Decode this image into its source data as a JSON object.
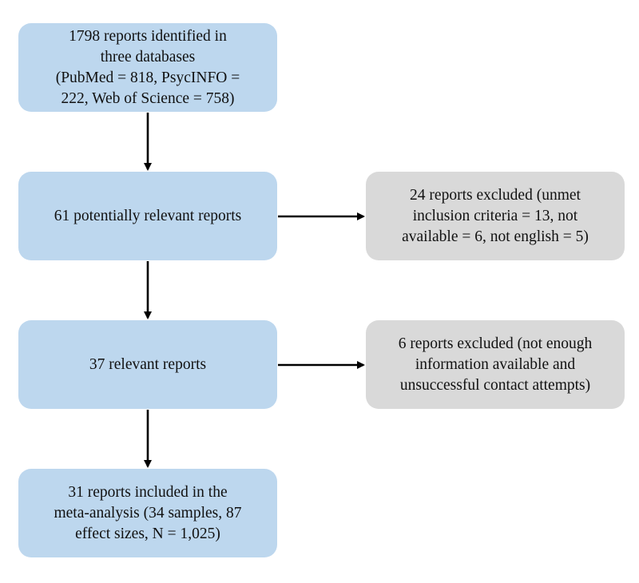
{
  "flowchart": {
    "identified": {
      "lines": [
        "1798 reports identified in",
        "three databases",
        "(PubMed = 818, PsycINFO =",
        "222, Web of Science = 758)"
      ],
      "color": "#bdd7ee"
    },
    "potentially_relevant": {
      "lines": [
        "61 potentially relevant reports"
      ],
      "color": "#bdd7ee"
    },
    "relevant": {
      "lines": [
        "37 relevant reports"
      ],
      "color": "#bdd7ee"
    },
    "included": {
      "lines": [
        "31 reports included in the",
        "meta-analysis (34 samples, 87",
        "effect sizes, N = 1,025)"
      ],
      "color": "#bdd7ee"
    },
    "excluded_1": {
      "lines": [
        "24 reports excluded (unmet",
        "inclusion criteria = 13, not",
        "available = 6, not english = 5)"
      ],
      "color": "#d9d9d9"
    },
    "excluded_2": {
      "lines": [
        "6 reports excluded (not enough",
        "information available and",
        "unsuccessful contact attempts)"
      ],
      "color": "#d9d9d9"
    }
  }
}
